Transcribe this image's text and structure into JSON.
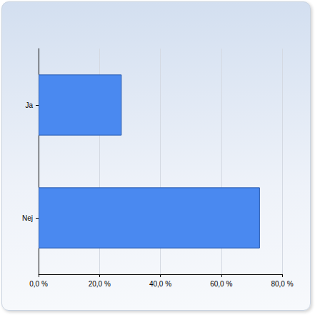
{
  "chart_data": {
    "type": "bar",
    "orientation": "horizontal",
    "categories": [
      "Ja",
      "Nej"
    ],
    "values": [
      27.3,
      72.7
    ],
    "color": "#4a89f0",
    "xlim": [
      0,
      80
    ],
    "xticks": [
      {
        "value": 0,
        "label": "0,0 %"
      },
      {
        "value": 20,
        "label": "20,0 %"
      },
      {
        "value": 40,
        "label": "40,0 %"
      },
      {
        "value": 60,
        "label": "60,0 %"
      },
      {
        "value": 80,
        "label": "80,0 %"
      }
    ],
    "grid": true
  }
}
